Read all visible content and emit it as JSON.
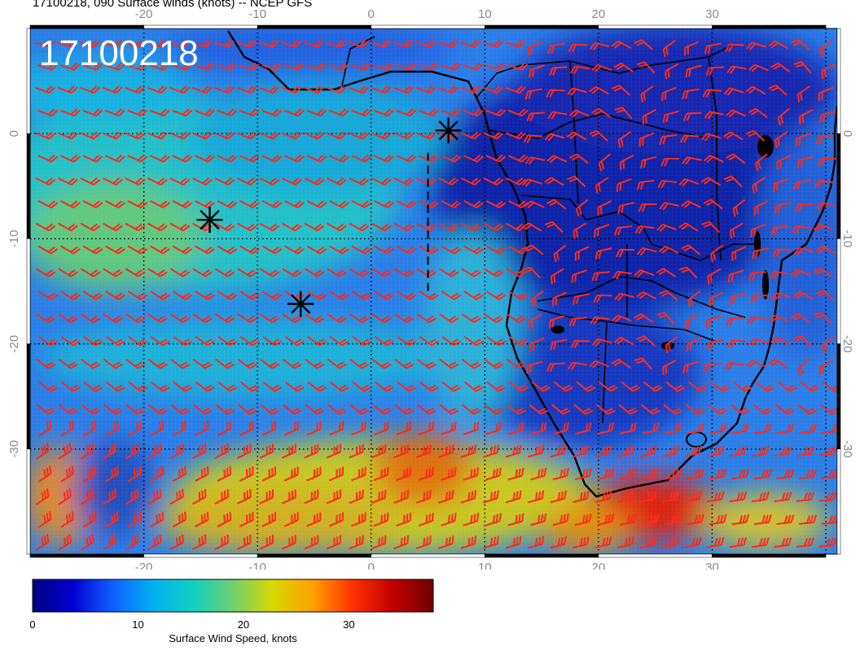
{
  "title": "17100218, 090 Surface winds (knots) -- NCEP GFS",
  "map": {
    "stamp": "17100218",
    "lon_min": -30,
    "lon_max": 41,
    "lat_min": -40,
    "lat_max": 10,
    "graticule_step": 10,
    "x_tick_labels": [
      "-20",
      "-10",
      "0",
      "10",
      "20",
      "30"
    ],
    "y_tick_labels": [
      "0",
      "-10",
      "-20",
      "-30"
    ],
    "barb_color": "#ff2a1a",
    "markers": [
      {
        "lon": 6.8,
        "lat": 0.3
      },
      {
        "lon": -14.2,
        "lat": -8.2
      },
      {
        "lon": -6.2,
        "lat": -16.2
      }
    ],
    "dashed_track": [
      [
        5.0,
        -1.8
      ],
      [
        5.0,
        -15.0
      ]
    ]
  },
  "colorbar": {
    "label": "Surface Wind Speed, knots",
    "tick_labels": [
      "0",
      "10",
      "20",
      "30"
    ],
    "min": 0,
    "max": 38,
    "colors": [
      "#000080",
      "#0000d0",
      "#1060ff",
      "#00b0f0",
      "#10d0c0",
      "#70d070",
      "#d8d800",
      "#ffa000",
      "#ff3000",
      "#c00000",
      "#700000"
    ]
  }
}
